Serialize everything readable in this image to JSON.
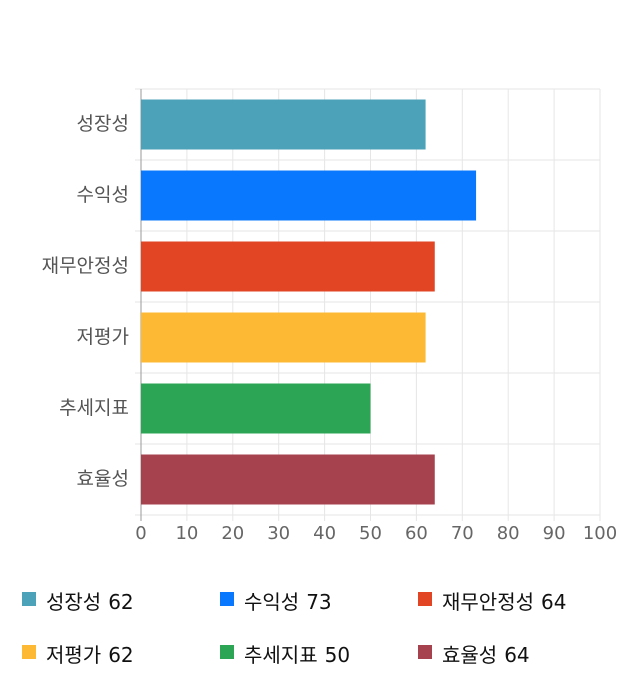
{
  "chart_data": {
    "type": "barh",
    "categories": [
      "성장성",
      "수익성",
      "재무안정성",
      "저평가",
      "추세지표",
      "효율성"
    ],
    "values": [
      62,
      73,
      64,
      62,
      50,
      64
    ],
    "colors": [
      "#4ba2b9",
      "#0a78fe",
      "#e14524",
      "#fdb934",
      "#2ca655",
      "#a6414e"
    ],
    "xlim": [
      0,
      100
    ],
    "xticks": [
      0,
      10,
      20,
      30,
      40,
      50,
      60,
      70,
      80,
      90,
      100
    ],
    "grid": true,
    "legend": "bottom"
  }
}
